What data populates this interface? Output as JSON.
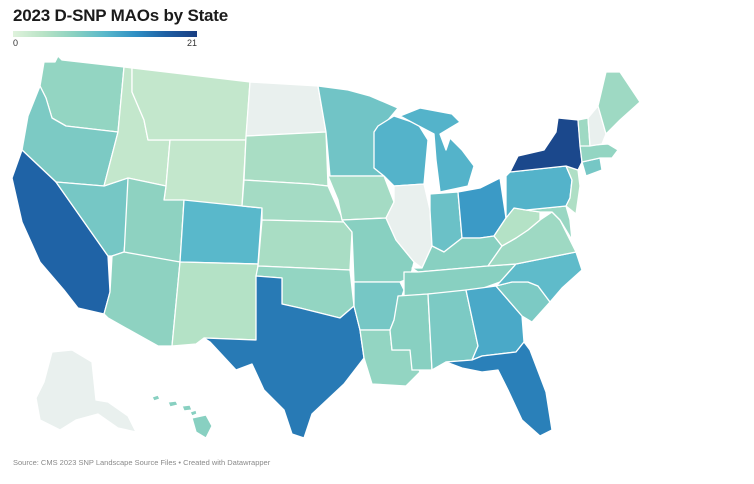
{
  "title": "2023 D-SNP MAOs by State",
  "legend": {
    "min_label": "0",
    "max_label": "21",
    "min": 0,
    "max": 21
  },
  "footer": "Source: CMS 2023 SNP Landscape Source Files • Created with Datawrapper",
  "colors": {
    "no_data": "#e9f0ee",
    "scale": [
      "#dff2dc",
      "#b8e3c6",
      "#8ad1c1",
      "#59b8cb",
      "#2f8fc4",
      "#1e5fa3",
      "#1a3e82"
    ]
  },
  "states": [
    {
      "id": "WA",
      "level": 0.3
    },
    {
      "id": "OR",
      "level": 0.38
    },
    {
      "id": "CA",
      "level": 0.82
    },
    {
      "id": "NV",
      "level": 0.4
    },
    {
      "id": "ID",
      "level": 0.12
    },
    {
      "id": "MT",
      "level": 0.12
    },
    {
      "id": "WY",
      "level": 0.12
    },
    {
      "id": "UT",
      "level": 0.32
    },
    {
      "id": "CO",
      "level": 0.5
    },
    {
      "id": "AZ",
      "level": 0.32
    },
    {
      "id": "NM",
      "level": 0.18
    },
    {
      "id": "ND",
      "level": null
    },
    {
      "id": "SD",
      "level": 0.22
    },
    {
      "id": "NE",
      "level": 0.24
    },
    {
      "id": "KS",
      "level": 0.22
    },
    {
      "id": "OK",
      "level": 0.3
    },
    {
      "id": "TX",
      "level": 0.74
    },
    {
      "id": "MN",
      "level": 0.42
    },
    {
      "id": "IA",
      "level": 0.24
    },
    {
      "id": "MO",
      "level": 0.34
    },
    {
      "id": "AR",
      "level": 0.4
    },
    {
      "id": "LA",
      "level": 0.3
    },
    {
      "id": "WI",
      "level": 0.52
    },
    {
      "id": "IL",
      "level": null
    },
    {
      "id": "MI",
      "level": 0.52
    },
    {
      "id": "IN",
      "level": 0.44
    },
    {
      "id": "OH",
      "level": 0.62
    },
    {
      "id": "KY",
      "level": 0.34
    },
    {
      "id": "TN",
      "level": 0.34
    },
    {
      "id": "MS",
      "level": 0.34
    },
    {
      "id": "AL",
      "level": 0.38
    },
    {
      "id": "GA",
      "level": 0.56
    },
    {
      "id": "FL",
      "level": 0.72
    },
    {
      "id": "SC",
      "level": 0.38
    },
    {
      "id": "NC",
      "level": 0.48
    },
    {
      "id": "VA",
      "level": 0.26
    },
    {
      "id": "WV",
      "level": 0.18
    },
    {
      "id": "PA",
      "level": 0.52
    },
    {
      "id": "NY",
      "level": 0.95
    },
    {
      "id": "ME",
      "level": 0.26
    },
    {
      "id": "NH",
      "level": null
    },
    {
      "id": "VT",
      "level": 0.26
    },
    {
      "id": "MA",
      "level": 0.3
    },
    {
      "id": "NJ",
      "level": 0.2
    },
    {
      "id": "CT",
      "level": 0.4
    },
    {
      "id": "MD",
      "level": 0.28
    },
    {
      "id": "AK",
      "level": null
    },
    {
      "id": "HI",
      "level": 0.34
    }
  ]
}
